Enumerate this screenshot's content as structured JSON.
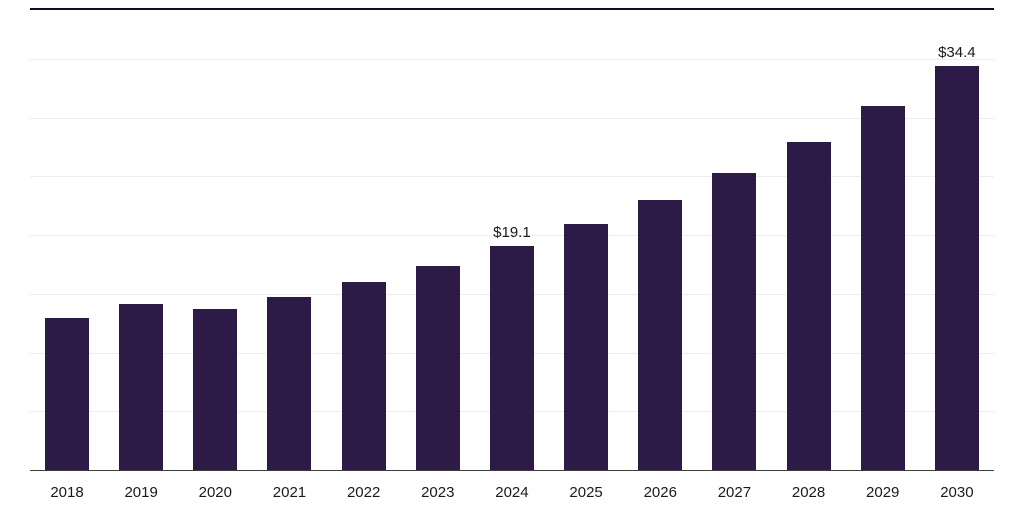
{
  "chart_data": {
    "type": "bar",
    "title": "",
    "xlabel": "",
    "ylabel": "",
    "categories": [
      "2018",
      "2019",
      "2020",
      "2021",
      "2022",
      "2023",
      "2024",
      "2025",
      "2026",
      "2027",
      "2028",
      "2029",
      "2030"
    ],
    "values": [
      12.9,
      14.1,
      13.7,
      14.7,
      16.0,
      17.4,
      19.1,
      20.9,
      23.0,
      25.3,
      27.9,
      31.0,
      34.4
    ],
    "data_labels": [
      null,
      null,
      null,
      null,
      null,
      null,
      "$19.1",
      null,
      null,
      null,
      null,
      null,
      "$34.4"
    ],
    "ylim": [
      0,
      40
    ],
    "gridline_step": 5,
    "grid_on": true,
    "legend_position": "none",
    "bar_color": "#2e1a47",
    "grid_color": "#ededed",
    "axis_color": "#3f3f3f",
    "label_color": "#1a1a1a",
    "top_rule_color": "#150a2d"
  }
}
